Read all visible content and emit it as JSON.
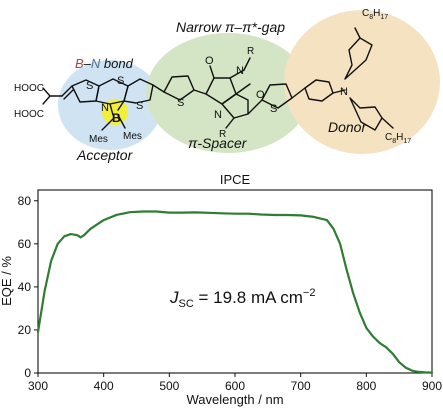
{
  "scheme": {
    "acceptor_label": "Acceptor",
    "bond_label_b": "B",
    "bond_label_dash": "–",
    "bond_label_n": "N",
    "bond_label_rest": " bond",
    "spacer_label": "π-Spacer",
    "gap_label": "Narrow π–π*-gap",
    "donor_label": "Donor",
    "atoms": {
      "hooc_top": "HOOC",
      "hooc_bottom": "HOOC",
      "s1": "S",
      "s2": "S",
      "s3": "S",
      "s4": "S",
      "s5": "S",
      "n_boron": "N",
      "b_atom": "B",
      "mes_left": "Mes",
      "mes_right": "Mes",
      "n_dpp_top": "N",
      "n_dpp_bottom": "N",
      "r_top": "R",
      "r_bottom": "R",
      "o_top": "O",
      "o_bottom": "O",
      "n_amine": "N",
      "c8h17_top": "C",
      "c8h17_top_sub": "8",
      "c8h17_top_h": "H",
      "c8h17_top_sub2": "17",
      "c8h17_bottom": "C",
      "c8h17_bottom_sub": "8",
      "c8h17_bottom_h": "H",
      "c8h17_bottom_sub2": "17"
    },
    "colors": {
      "acceptor_bg": "#cfe3f2",
      "spacer_bg": "#d3e5c4",
      "donor_bg": "#f5e2c0",
      "boron_highlight": "#f2ee3c",
      "b_text": "#b0413e",
      "n_text": "#4f6e8f"
    }
  },
  "chart_data": {
    "type": "line",
    "title": "IPCE",
    "xlabel": "Wavelength / nm",
    "ylabel": "EQE / %",
    "xlim": [
      300,
      900
    ],
    "ylim": [
      0,
      85
    ],
    "xticks": [
      300,
      400,
      500,
      600,
      700,
      800,
      900
    ],
    "yticks": [
      0,
      20,
      40,
      60,
      80
    ],
    "grid": false,
    "annotation": {
      "prefix": "J",
      "sub": "SC",
      "value": " = 19.8 mA cm",
      "sup": "−2"
    },
    "series": [
      {
        "color": "#2e7d32",
        "x": [
          300,
          310,
          320,
          330,
          340,
          350,
          360,
          365,
          370,
          380,
          400,
          420,
          440,
          460,
          480,
          500,
          520,
          540,
          560,
          580,
          600,
          620,
          640,
          660,
          680,
          700,
          720,
          740,
          750,
          760,
          770,
          780,
          790,
          800,
          810,
          820,
          830,
          840,
          850,
          860,
          870,
          880,
          890,
          900
        ],
        "y": [
          19,
          38,
          52,
          60,
          63.5,
          64.5,
          64,
          63,
          64,
          67,
          71,
          73.5,
          74.7,
          75,
          75,
          74.5,
          74.5,
          74.6,
          74.4,
          74.2,
          74,
          74,
          73.6,
          73.4,
          73.4,
          73.2,
          72.5,
          71,
          67,
          60,
          48,
          37,
          28,
          21,
          17,
          14,
          12,
          9,
          5,
          2.5,
          1,
          0.5,
          0.3,
          0.2
        ]
      }
    ]
  }
}
